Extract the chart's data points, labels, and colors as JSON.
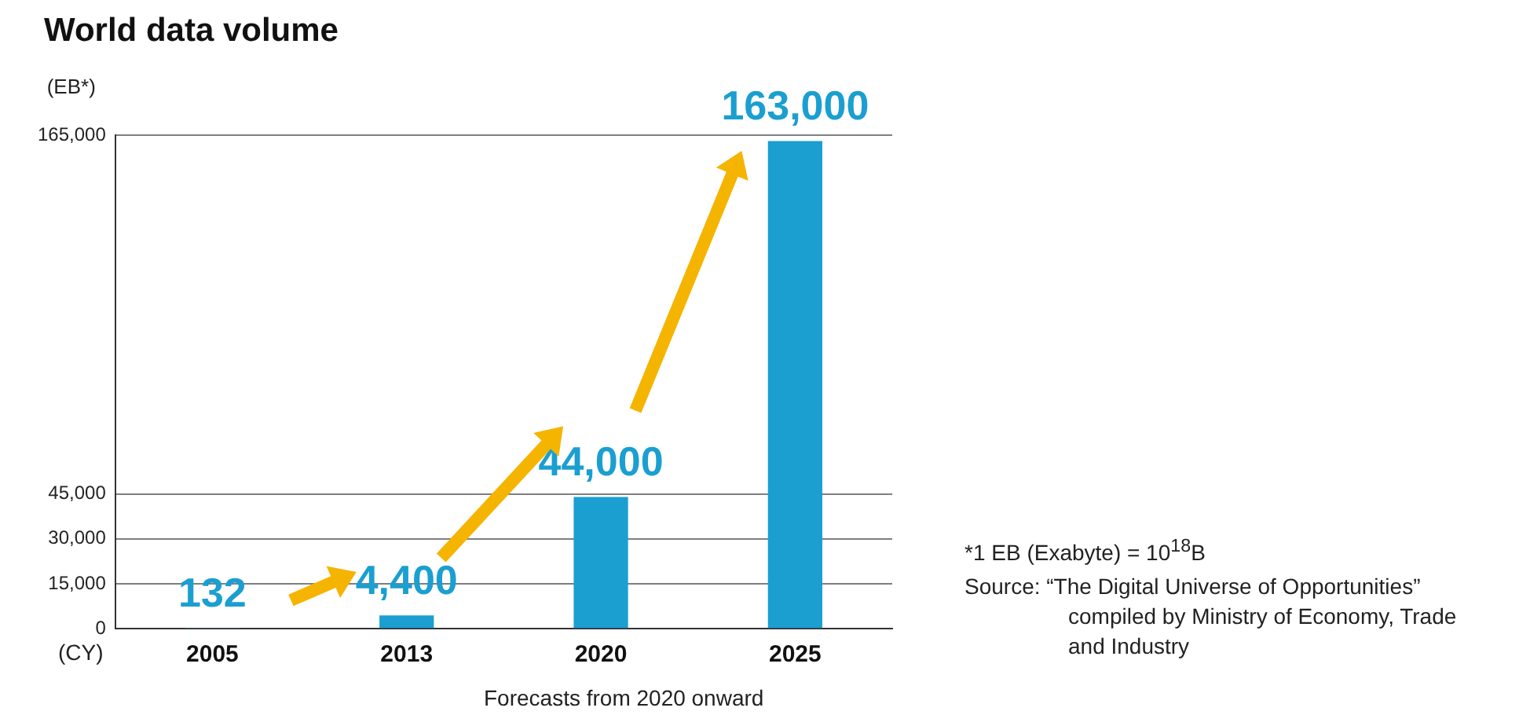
{
  "chart_data": {
    "type": "bar",
    "title": "World data volume",
    "ylabel": "(EB*)",
    "xlabel": "(CY)",
    "categories": [
      "2005",
      "2013",
      "2020",
      "2025"
    ],
    "values": [
      132,
      4400,
      44000,
      163000
    ],
    "value_labels": [
      "132",
      "4,400",
      "44,000",
      "163,000"
    ],
    "color": "#1a9fd0",
    "ylim": [
      0,
      165000
    ],
    "yticks": [
      0,
      {
        "value": 15000,
        "label": "15,000"
      },
      {
        "value": 30000,
        "label": "30,000"
      },
      {
        "value": 45000,
        "label": "45,000"
      },
      {
        "value": 165000,
        "label": "165,000"
      }
    ],
    "grid": "y",
    "annotations": [
      "Forecasts from 2020 onward",
      "*1 EB (Exabyte) = 10$^{18}$B",
      "Source: “The Digital Universe of Opportunities” compiled by Ministry of Economy, Trade and Industry"
    ]
  }
}
